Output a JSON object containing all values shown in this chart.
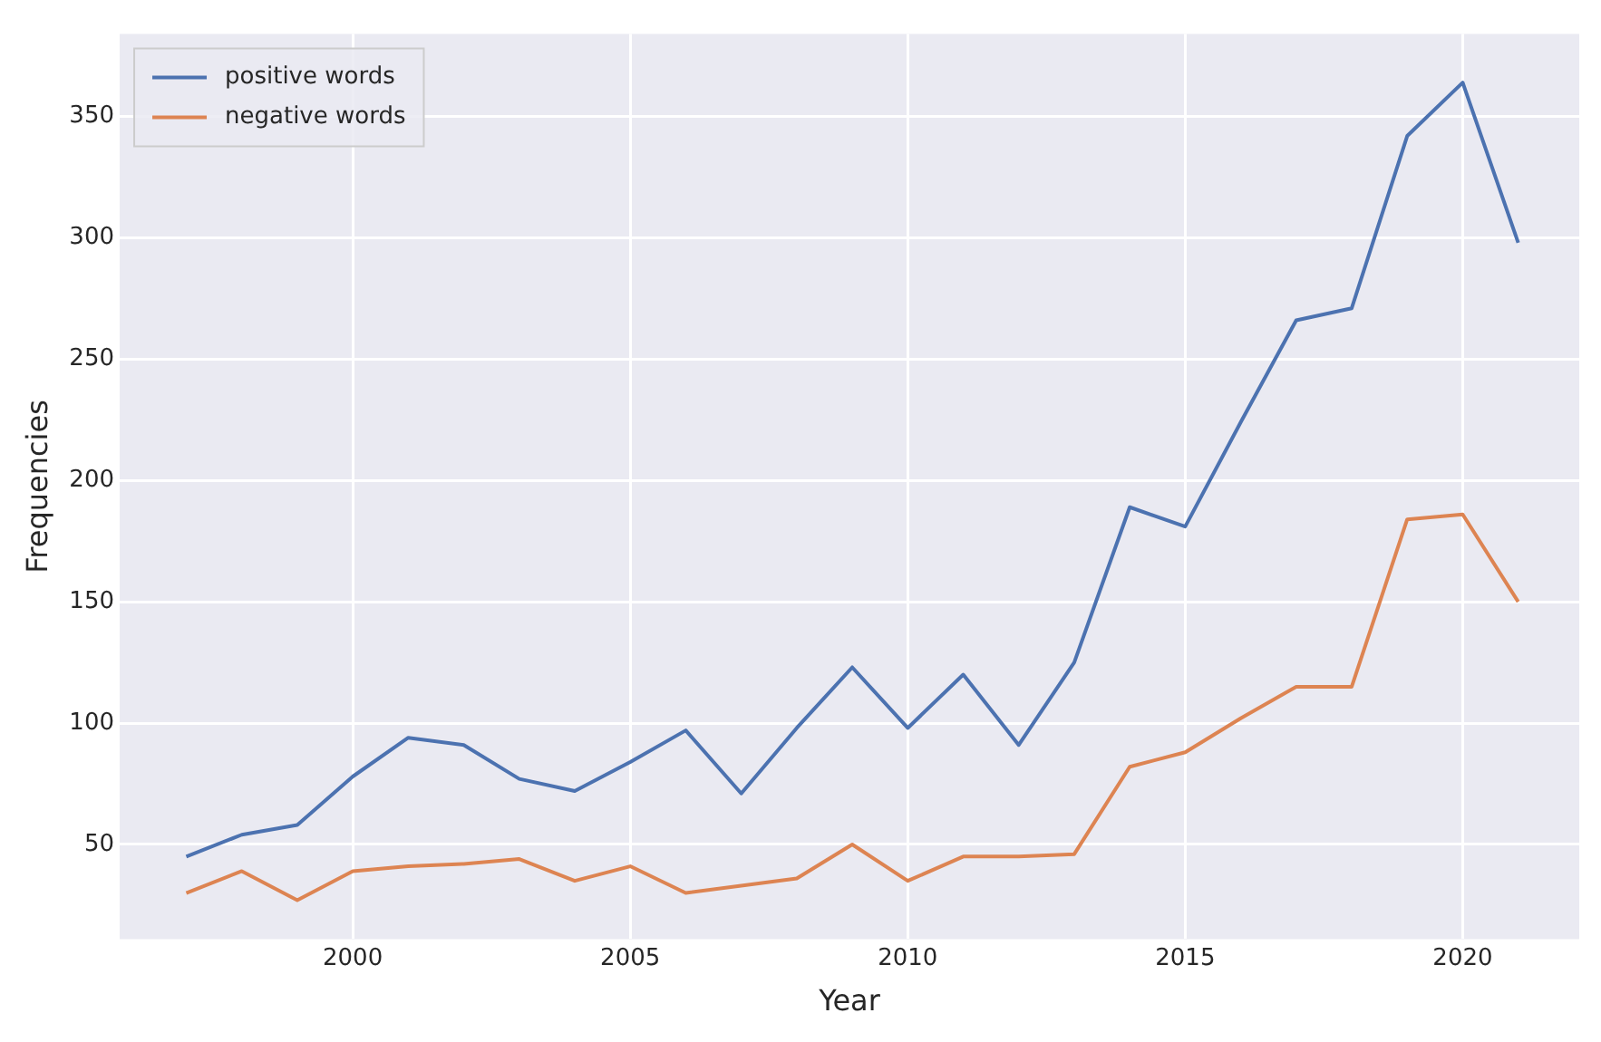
{
  "chart_data": {
    "type": "line",
    "xlabel": "Year",
    "ylabel": "Frequencies",
    "x": [
      1997,
      1998,
      1999,
      2000,
      2001,
      2002,
      2003,
      2004,
      2005,
      2006,
      2007,
      2008,
      2009,
      2010,
      2011,
      2012,
      2013,
      2014,
      2015,
      2016,
      2017,
      2018,
      2019,
      2020,
      2021
    ],
    "series": [
      {
        "name": "positive words",
        "color": "#4c72b0",
        "values": [
          45,
          54,
          58,
          78,
          94,
          91,
          77,
          72,
          84,
          97,
          71,
          98,
          123,
          98,
          120,
          91,
          125,
          189,
          181,
          224,
          266,
          271,
          342,
          364,
          298
        ]
      },
      {
        "name": "negative words",
        "color": "#dd8452",
        "values": [
          30,
          39,
          27,
          39,
          41,
          42,
          44,
          35,
          41,
          30,
          33,
          36,
          50,
          35,
          45,
          45,
          46,
          82,
          88,
          102,
          115,
          115,
          184,
          186,
          150
        ]
      }
    ],
    "xlim": [
      1995.8,
      2022.1
    ],
    "xticks": [
      2000,
      2005,
      2010,
      2015,
      2020
    ],
    "ylim": [
      11,
      384
    ],
    "yticks": [
      50,
      100,
      150,
      200,
      250,
      300,
      350
    ],
    "grid": true,
    "legend": "top left",
    "marker": "none",
    "line_style": "solid"
  }
}
